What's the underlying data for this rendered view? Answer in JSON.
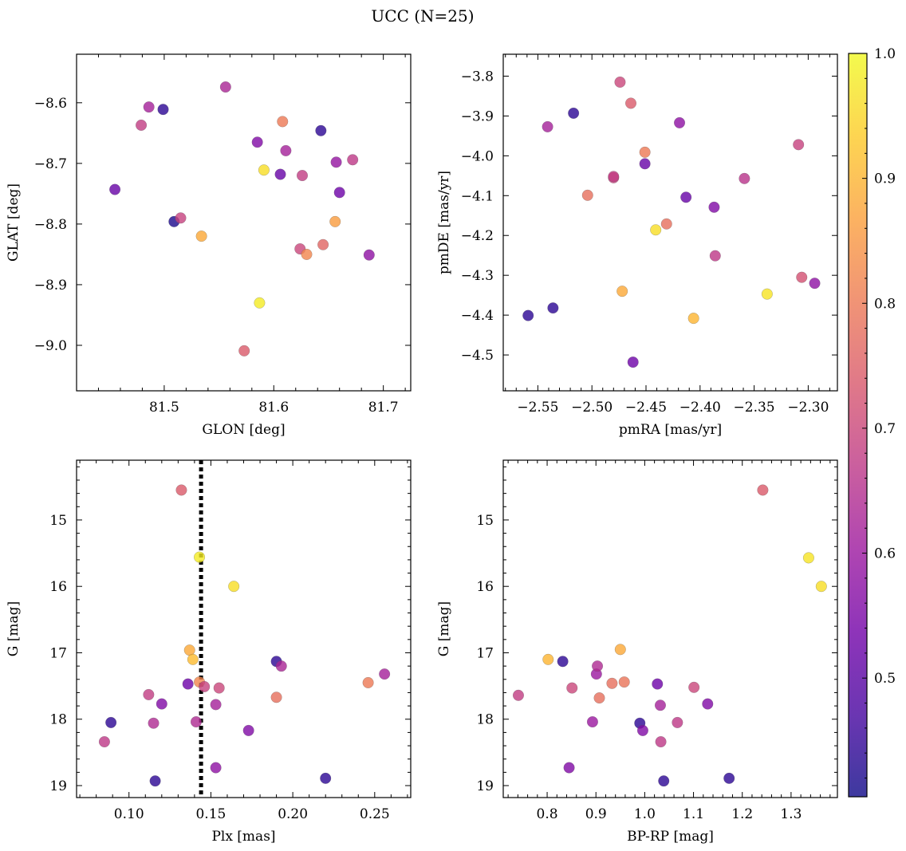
{
  "figure": {
    "suptitle": "UCC (N=25)"
  },
  "colormap": {
    "name": "plasma",
    "range": [
      0.405,
      1.0
    ],
    "ticks": [
      0.5,
      0.6,
      0.7,
      0.8,
      0.9,
      1.0
    ],
    "stops": [
      "#0d0887",
      "#46039f",
      "#7201a8",
      "#9c179e",
      "#bd3786",
      "#d8576b",
      "#ed7953",
      "#fb9f3a",
      "#fdca26",
      "#f0f921"
    ],
    "alpha": 0.8
  },
  "colorbar": {
    "tick_labels": [
      "0.5",
      "0.6",
      "0.7",
      "0.8",
      "0.9",
      "1.0"
    ]
  },
  "chart_data": [
    {
      "type": "scatter",
      "title": "",
      "xlabel": "GLON [deg]",
      "ylabel": "GLAT [deg]",
      "xlim": [
        81.42,
        81.725
      ],
      "ylim": [
        -9.075,
        -8.52
      ],
      "y_inverted": false,
      "xticks": [
        81.5,
        81.6,
        81.7
      ],
      "xtick_labels": [
        "81.5",
        "81.6",
        "81.7"
      ],
      "yticks": [
        -8.6,
        -8.7,
        -8.8,
        -8.9,
        -9.0
      ],
      "ytick_labels": [
        "−8.6",
        "−8.7",
        "−8.8",
        "−8.9",
        "−9.0"
      ],
      "points": [
        {
          "x": 81.455,
          "y": -8.743,
          "c": 0.52
        },
        {
          "x": 81.479,
          "y": -8.637,
          "c": 0.68
        },
        {
          "x": 81.486,
          "y": -8.607,
          "c": 0.62
        },
        {
          "x": 81.499,
          "y": -8.611,
          "c": 0.44
        },
        {
          "x": 81.509,
          "y": -8.796,
          "c": 0.42
        },
        {
          "x": 81.515,
          "y": -8.79,
          "c": 0.69
        },
        {
          "x": 81.534,
          "y": -8.82,
          "c": 0.88
        },
        {
          "x": 81.556,
          "y": -8.574,
          "c": 0.63
        },
        {
          "x": 81.573,
          "y": -9.009,
          "c": 0.74
        },
        {
          "x": 81.585,
          "y": -8.665,
          "c": 0.56
        },
        {
          "x": 81.587,
          "y": -8.93,
          "c": 0.98
        },
        {
          "x": 81.591,
          "y": -8.711,
          "c": 0.96
        },
        {
          "x": 81.606,
          "y": -8.718,
          "c": 0.52
        },
        {
          "x": 81.608,
          "y": -8.631,
          "c": 0.8
        },
        {
          "x": 81.611,
          "y": -8.679,
          "c": 0.62
        },
        {
          "x": 81.624,
          "y": -8.841,
          "c": 0.7
        },
        {
          "x": 81.626,
          "y": -8.72,
          "c": 0.68
        },
        {
          "x": 81.63,
          "y": -8.85,
          "c": 0.82
        },
        {
          "x": 81.643,
          "y": -8.646,
          "c": 0.44
        },
        {
          "x": 81.645,
          "y": -8.834,
          "c": 0.76
        },
        {
          "x": 81.656,
          "y": -8.796,
          "c": 0.86
        },
        {
          "x": 81.657,
          "y": -8.698,
          "c": 0.59
        },
        {
          "x": 81.66,
          "y": -8.748,
          "c": 0.53
        },
        {
          "x": 81.672,
          "y": -8.694,
          "c": 0.67
        },
        {
          "x": 81.687,
          "y": -8.851,
          "c": 0.58
        }
      ]
    },
    {
      "type": "scatter",
      "title": "",
      "xlabel": "pmRA [mas/yr]",
      "ylabel": "pmDE [mas/yr]",
      "xlim": [
        -2.582,
        -2.273
      ],
      "ylim": [
        -4.59,
        -3.745
      ],
      "y_inverted": false,
      "xticks": [
        -2.55,
        -2.5,
        -2.45,
        -2.4,
        -2.35,
        -2.3
      ],
      "xtick_labels": [
        "−2.55",
        "−2.50",
        "−2.45",
        "−2.40",
        "−2.35",
        "−2.30"
      ],
      "yticks": [
        -3.8,
        -3.9,
        -4.0,
        -4.1,
        -4.2,
        -4.3,
        -4.4,
        -4.5
      ],
      "ytick_labels": [
        "−3.8",
        "−3.9",
        "−4.0",
        "−4.1",
        "−4.2",
        "−4.3",
        "−4.4",
        "−4.5"
      ],
      "points": [
        {
          "x": -2.559,
          "y": -4.401,
          "c": 0.44
        },
        {
          "x": -2.541,
          "y": -3.927,
          "c": 0.62
        },
        {
          "x": -2.536,
          "y": -4.382,
          "c": 0.44
        },
        {
          "x": -2.517,
          "y": -3.893,
          "c": 0.44
        },
        {
          "x": -2.504,
          "y": -4.099,
          "c": 0.78
        },
        {
          "x": -2.48,
          "y": -4.055,
          "c": 0.69
        },
        {
          "x": -2.48,
          "y": -4.052,
          "c": 0.68
        },
        {
          "x": -2.474,
          "y": -3.815,
          "c": 0.7
        },
        {
          "x": -2.472,
          "y": -4.34,
          "c": 0.88
        },
        {
          "x": -2.464,
          "y": -3.868,
          "c": 0.74
        },
        {
          "x": -2.462,
          "y": -4.518,
          "c": 0.53
        },
        {
          "x": -2.451,
          "y": -3.991,
          "c": 0.8
        },
        {
          "x": -2.451,
          "y": -4.02,
          "c": 0.52
        },
        {
          "x": -2.441,
          "y": -4.186,
          "c": 0.96
        },
        {
          "x": -2.431,
          "y": -4.171,
          "c": 0.78
        },
        {
          "x": -2.419,
          "y": -3.917,
          "c": 0.58
        },
        {
          "x": -2.413,
          "y": -4.104,
          "c": 0.52
        },
        {
          "x": -2.406,
          "y": -4.408,
          "c": 0.9
        },
        {
          "x": -2.387,
          "y": -4.129,
          "c": 0.56
        },
        {
          "x": -2.386,
          "y": -4.251,
          "c": 0.67
        },
        {
          "x": -2.359,
          "y": -4.057,
          "c": 0.66
        },
        {
          "x": -2.338,
          "y": -4.347,
          "c": 0.97
        },
        {
          "x": -2.309,
          "y": -3.972,
          "c": 0.69
        },
        {
          "x": -2.306,
          "y": -4.305,
          "c": 0.72
        },
        {
          "x": -2.294,
          "y": -4.32,
          "c": 0.58
        }
      ]
    },
    {
      "type": "scatter",
      "title": "",
      "xlabel": "Plx [mas]",
      "ylabel": "G [mag]",
      "xlim": [
        0.068,
        0.272
      ],
      "ylim": [
        19.18,
        14.1
      ],
      "y_inverted": true,
      "xticks": [
        0.1,
        0.15,
        0.2,
        0.25
      ],
      "xtick_labels": [
        "0.10",
        "0.15",
        "0.20",
        "0.25"
      ],
      "yticks": [
        15,
        16,
        17,
        18,
        19
      ],
      "ytick_labels": [
        "15",
        "16",
        "17",
        "18",
        "19"
      ],
      "vline": {
        "x": 0.144,
        "style": "dotted"
      },
      "points": [
        {
          "x": 0.085,
          "y": 18.34,
          "c": 0.67
        },
        {
          "x": 0.089,
          "y": 18.05,
          "c": 0.44
        },
        {
          "x": 0.112,
          "y": 17.63,
          "c": 0.68
        },
        {
          "x": 0.115,
          "y": 18.06,
          "c": 0.64
        },
        {
          "x": 0.116,
          "y": 18.93,
          "c": 0.44
        },
        {
          "x": 0.12,
          "y": 17.77,
          "c": 0.56
        },
        {
          "x": 0.132,
          "y": 14.55,
          "c": 0.74
        },
        {
          "x": 0.136,
          "y": 17.47,
          "c": 0.53
        },
        {
          "x": 0.137,
          "y": 16.96,
          "c": 0.88
        },
        {
          "x": 0.139,
          "y": 17.1,
          "c": 0.91
        },
        {
          "x": 0.141,
          "y": 18.04,
          "c": 0.64
        },
        {
          "x": 0.143,
          "y": 15.56,
          "c": 0.98
        },
        {
          "x": 0.143,
          "y": 17.44,
          "c": 0.82
        },
        {
          "x": 0.146,
          "y": 17.51,
          "c": 0.69
        },
        {
          "x": 0.153,
          "y": 18.73,
          "c": 0.58
        },
        {
          "x": 0.153,
          "y": 17.78,
          "c": 0.62
        },
        {
          "x": 0.155,
          "y": 17.53,
          "c": 0.7
        },
        {
          "x": 0.164,
          "y": 16.0,
          "c": 0.96
        },
        {
          "x": 0.173,
          "y": 18.17,
          "c": 0.56
        },
        {
          "x": 0.19,
          "y": 17.13,
          "c": 0.44
        },
        {
          "x": 0.19,
          "y": 17.67,
          "c": 0.78
        },
        {
          "x": 0.193,
          "y": 17.2,
          "c": 0.63
        },
        {
          "x": 0.22,
          "y": 18.89,
          "c": 0.44
        },
        {
          "x": 0.246,
          "y": 17.45,
          "c": 0.8
        },
        {
          "x": 0.256,
          "y": 17.32,
          "c": 0.62
        }
      ]
    },
    {
      "type": "scatter",
      "title": "",
      "xlabel": "BP-RP [mag]",
      "ylabel": "G [mag]",
      "xlim": [
        0.71,
        1.395
      ],
      "ylim": [
        19.18,
        14.1
      ],
      "y_inverted": true,
      "xticks": [
        0.8,
        0.9,
        1.0,
        1.1,
        1.2,
        1.3
      ],
      "xtick_labels": [
        "0.8",
        "0.9",
        "1.0",
        "1.1",
        "1.2",
        "1.3"
      ],
      "yticks": [
        15,
        16,
        17,
        18,
        19
      ],
      "ytick_labels": [
        "15",
        "16",
        "17",
        "18",
        "19"
      ],
      "points": [
        {
          "x": 0.741,
          "y": 17.64,
          "c": 0.68
        },
        {
          "x": 0.802,
          "y": 17.1,
          "c": 0.9
        },
        {
          "x": 0.832,
          "y": 17.13,
          "c": 0.44
        },
        {
          "x": 0.845,
          "y": 18.73,
          "c": 0.56
        },
        {
          "x": 0.851,
          "y": 17.53,
          "c": 0.7
        },
        {
          "x": 0.893,
          "y": 18.04,
          "c": 0.6
        },
        {
          "x": 0.901,
          "y": 17.32,
          "c": 0.6
        },
        {
          "x": 0.903,
          "y": 17.2,
          "c": 0.64
        },
        {
          "x": 0.907,
          "y": 17.68,
          "c": 0.78
        },
        {
          "x": 0.933,
          "y": 17.46,
          "c": 0.78
        },
        {
          "x": 0.95,
          "y": 16.95,
          "c": 0.88
        },
        {
          "x": 0.958,
          "y": 17.44,
          "c": 0.79
        },
        {
          "x": 0.99,
          "y": 18.06,
          "c": 0.44
        },
        {
          "x": 0.996,
          "y": 18.17,
          "c": 0.56
        },
        {
          "x": 1.026,
          "y": 17.47,
          "c": 0.53
        },
        {
          "x": 1.032,
          "y": 17.79,
          "c": 0.62
        },
        {
          "x": 1.033,
          "y": 18.34,
          "c": 0.67
        },
        {
          "x": 1.039,
          "y": 18.93,
          "c": 0.44
        },
        {
          "x": 1.067,
          "y": 18.05,
          "c": 0.67
        },
        {
          "x": 1.101,
          "y": 17.52,
          "c": 0.7
        },
        {
          "x": 1.129,
          "y": 17.77,
          "c": 0.56
        },
        {
          "x": 1.173,
          "y": 18.89,
          "c": 0.44
        },
        {
          "x": 1.242,
          "y": 14.55,
          "c": 0.74
        },
        {
          "x": 1.336,
          "y": 15.57,
          "c": 0.97
        },
        {
          "x": 1.362,
          "y": 16.0,
          "c": 0.96
        }
      ]
    }
  ]
}
